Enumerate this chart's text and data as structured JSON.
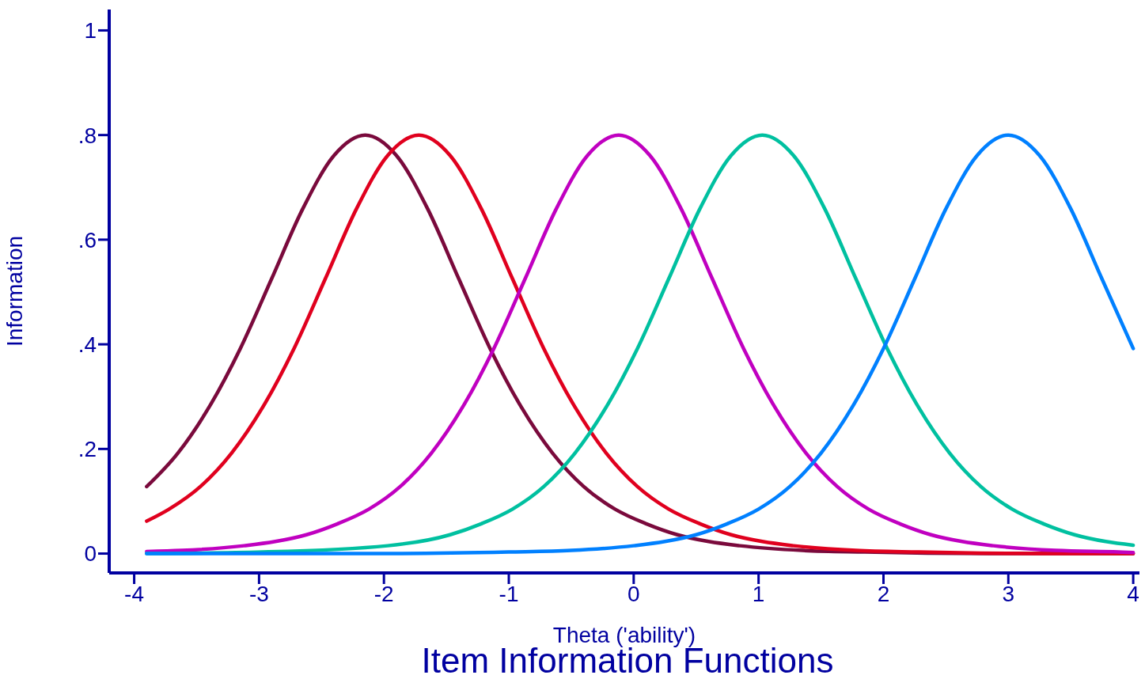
{
  "chart_data": {
    "type": "line",
    "title": "Item Information Functions",
    "xlabel": "Theta   ('ability')",
    "ylabel": "Information",
    "xlim": [
      -4.2,
      4.05
    ],
    "xticks": [
      -4,
      -3,
      -2,
      -1,
      0,
      1,
      2,
      3,
      4
    ],
    "ylim": [
      -0.037,
      1.04
    ],
    "yticks": [
      0,
      {
        "value": 0.2,
        "label": ".2"
      },
      {
        "value": 0.4,
        "label": ".4"
      },
      {
        "value": 0.6,
        "label": ".6"
      },
      {
        "value": 0.8,
        "label": ".8"
      },
      1
    ],
    "grid": false,
    "legend": false,
    "marker": "none",
    "line_style": "solid",
    "series": [
      {
        "color": "#7a0a3c",
        "x": [
          -3.9,
          -3.65,
          -3.4,
          -3.15,
          -2.9,
          -2.65,
          -2.4,
          -2.15,
          -1.9,
          -1.65,
          -1.4,
          -1.15,
          -0.9,
          -0.65,
          -0.4,
          -0.15,
          0.1,
          0.35,
          0.6,
          0.85,
          1.35,
          1.85,
          2.35,
          2.85,
          4
        ],
        "values": [
          0.128,
          0.192,
          0.28,
          0.392,
          0.525,
          0.659,
          0.761,
          0.8,
          0.761,
          0.659,
          0.525,
          0.392,
          0.28,
          0.192,
          0.128,
          0.085,
          0.057,
          0.036,
          0.023,
          0.015,
          0.006,
          0.003,
          0.001,
          0,
          0
        ]
      },
      {
        "color": "#e0001e",
        "x": [
          -3.9,
          -3.72,
          -3.47,
          -3.22,
          -2.97,
          -2.72,
          -2.47,
          -2.22,
          -1.97,
          -1.72,
          -1.47,
          -1.22,
          -0.97,
          -0.72,
          -0.47,
          -0.22,
          0.03,
          0.28,
          0.53,
          0.78,
          1.03,
          1.28,
          1.78,
          2.28,
          2.78,
          3.28,
          4
        ],
        "values": [
          0.062,
          0.085,
          0.128,
          0.192,
          0.28,
          0.392,
          0.525,
          0.659,
          0.761,
          0.8,
          0.761,
          0.659,
          0.525,
          0.392,
          0.28,
          0.192,
          0.128,
          0.085,
          0.057,
          0.036,
          0.023,
          0.015,
          0.006,
          0.003,
          0.001,
          0,
          0
        ]
      },
      {
        "color": "#c000c0",
        "x": [
          -3.9,
          -3.62,
          -3.12,
          -2.87,
          -2.62,
          -2.37,
          -2.12,
          -1.87,
          -1.62,
          -1.37,
          -1.12,
          -0.87,
          -0.62,
          -0.37,
          -0.12,
          0.13,
          0.38,
          0.63,
          0.88,
          1.13,
          1.38,
          1.63,
          1.88,
          2.13,
          2.38,
          2.63,
          2.88,
          3.38,
          3.88,
          4
        ],
        "values": [
          0.004,
          0.006,
          0.015,
          0.023,
          0.036,
          0.057,
          0.085,
          0.128,
          0.192,
          0.28,
          0.392,
          0.525,
          0.659,
          0.761,
          0.8,
          0.761,
          0.659,
          0.525,
          0.392,
          0.28,
          0.192,
          0.128,
          0.085,
          0.057,
          0.036,
          0.023,
          0.015,
          0.006,
          0.003,
          0.002
        ]
      },
      {
        "color": "#00c0a0",
        "x": [
          -3.9,
          -2.97,
          -1.97,
          -1.47,
          -1.22,
          -0.97,
          -0.72,
          -0.47,
          -0.22,
          0.03,
          0.28,
          0.53,
          0.78,
          1.03,
          1.28,
          1.53,
          1.78,
          2.03,
          2.28,
          2.53,
          2.78,
          3.03,
          3.28,
          3.53,
          3.78,
          4
        ],
        "values": [
          0,
          0.003,
          0.015,
          0.036,
          0.057,
          0.085,
          0.128,
          0.192,
          0.28,
          0.392,
          0.525,
          0.659,
          0.761,
          0.8,
          0.761,
          0.659,
          0.525,
          0.392,
          0.28,
          0.192,
          0.128,
          0.085,
          0.057,
          0.036,
          0.023,
          0.016
        ]
      },
      {
        "color": "#0080ff",
        "x": [
          -3.9,
          -2,
          -1,
          -0.5,
          0,
          0.25,
          0.5,
          0.75,
          1,
          1.25,
          1.5,
          1.75,
          2,
          2.25,
          2.5,
          2.75,
          3,
          3.25,
          3.5,
          3.75,
          4
        ],
        "values": [
          0,
          0,
          0.003,
          0.006,
          0.015,
          0.023,
          0.036,
          0.057,
          0.085,
          0.128,
          0.192,
          0.28,
          0.392,
          0.525,
          0.659,
          0.761,
          0.8,
          0.761,
          0.659,
          0.525,
          0.392
        ]
      }
    ]
  }
}
